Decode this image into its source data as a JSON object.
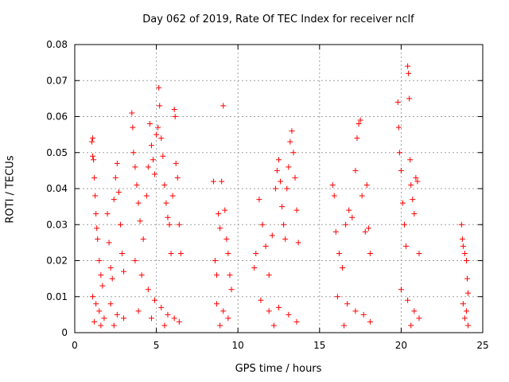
{
  "chart_data": {
    "type": "scatter",
    "title": "Day 062 of 2019, Rate Of TEC Index for receiver nclf",
    "xlabel": "GPS time / hours",
    "ylabel": "ROTI / TECUs",
    "xlim": [
      0,
      25
    ],
    "ylim": [
      0,
      0.08
    ],
    "xticks": [
      0,
      5,
      10,
      15,
      20,
      25
    ],
    "yticks": [
      0,
      0.01,
      0.02,
      0.03,
      0.04,
      0.05,
      0.06,
      0.07,
      0.08
    ],
    "xtick_labels": [
      "0",
      "5",
      "10",
      "15",
      "20",
      "25"
    ],
    "ytick_labels": [
      "0",
      "0.01",
      "0.02",
      "0.03",
      "0.04",
      "0.05",
      "0.06",
      "0.07",
      "0.08"
    ],
    "grid": true,
    "marker": "+",
    "marker_color": "#ff0000",
    "series": [
      {
        "name": "ROTI",
        "points": [
          [
            1.05,
            0.053
          ],
          [
            1.1,
            0.054
          ],
          [
            1.1,
            0.049
          ],
          [
            1.15,
            0.048
          ],
          [
            1.2,
            0.043
          ],
          [
            1.25,
            0.038
          ],
          [
            1.3,
            0.033
          ],
          [
            1.35,
            0.029
          ],
          [
            1.4,
            0.026
          ],
          [
            1.5,
            0.02
          ],
          [
            1.6,
            0.016
          ],
          [
            1.7,
            0.013
          ],
          [
            1.1,
            0.01
          ],
          [
            1.3,
            0.008
          ],
          [
            1.5,
            0.006
          ],
          [
            1.8,
            0.004
          ],
          [
            1.2,
            0.003
          ],
          [
            1.6,
            0.002
          ],
          [
            2.0,
            0.033
          ],
          [
            2.1,
            0.025
          ],
          [
            2.2,
            0.018
          ],
          [
            2.3,
            0.015
          ],
          [
            2.4,
            0.037
          ],
          [
            2.5,
            0.043
          ],
          [
            2.6,
            0.047
          ],
          [
            2.7,
            0.039
          ],
          [
            2.8,
            0.03
          ],
          [
            2.9,
            0.022
          ],
          [
            3.0,
            0.017
          ],
          [
            2.2,
            0.008
          ],
          [
            2.6,
            0.005
          ],
          [
            3.0,
            0.004
          ],
          [
            2.4,
            0.002
          ],
          [
            3.5,
            0.061
          ],
          [
            3.55,
            0.057
          ],
          [
            3.6,
            0.05
          ],
          [
            3.7,
            0.046
          ],
          [
            3.8,
            0.041
          ],
          [
            3.9,
            0.036
          ],
          [
            4.0,
            0.031
          ],
          [
            4.2,
            0.026
          ],
          [
            4.4,
            0.038
          ],
          [
            4.5,
            0.046
          ],
          [
            4.6,
            0.058
          ],
          [
            4.7,
            0.052
          ],
          [
            4.8,
            0.048
          ],
          [
            4.9,
            0.044
          ],
          [
            5.0,
            0.055
          ],
          [
            5.1,
            0.057
          ],
          [
            5.15,
            0.068
          ],
          [
            5.2,
            0.063
          ],
          [
            5.3,
            0.054
          ],
          [
            5.4,
            0.049
          ],
          [
            5.5,
            0.041
          ],
          [
            5.6,
            0.036
          ],
          [
            5.7,
            0.032
          ],
          [
            5.8,
            0.03
          ],
          [
            5.9,
            0.022
          ],
          [
            6.0,
            0.038
          ],
          [
            6.1,
            0.062
          ],
          [
            6.15,
            0.06
          ],
          [
            6.2,
            0.047
          ],
          [
            6.3,
            0.043
          ],
          [
            6.4,
            0.03
          ],
          [
            6.5,
            0.022
          ],
          [
            3.7,
            0.02
          ],
          [
            4.1,
            0.016
          ],
          [
            4.5,
            0.012
          ],
          [
            4.9,
            0.009
          ],
          [
            5.3,
            0.007
          ],
          [
            5.7,
            0.005
          ],
          [
            6.1,
            0.004
          ],
          [
            6.4,
            0.003
          ],
          [
            3.9,
            0.006
          ],
          [
            4.7,
            0.004
          ],
          [
            5.5,
            0.002
          ],
          [
            8.5,
            0.042
          ],
          [
            8.6,
            0.02
          ],
          [
            8.7,
            0.016
          ],
          [
            8.8,
            0.033
          ],
          [
            8.9,
            0.029
          ],
          [
            9.0,
            0.042
          ],
          [
            9.1,
            0.063
          ],
          [
            9.2,
            0.034
          ],
          [
            9.3,
            0.026
          ],
          [
            9.4,
            0.022
          ],
          [
            9.5,
            0.016
          ],
          [
            9.6,
            0.012
          ],
          [
            8.7,
            0.008
          ],
          [
            9.1,
            0.006
          ],
          [
            9.4,
            0.004
          ],
          [
            8.9,
            0.002
          ],
          [
            11.0,
            0.018
          ],
          [
            11.1,
            0.022
          ],
          [
            11.3,
            0.037
          ],
          [
            11.5,
            0.03
          ],
          [
            11.7,
            0.024
          ],
          [
            11.9,
            0.016
          ],
          [
            12.1,
            0.027
          ],
          [
            12.3,
            0.04
          ],
          [
            12.4,
            0.045
          ],
          [
            12.5,
            0.048
          ],
          [
            12.6,
            0.042
          ],
          [
            12.7,
            0.035
          ],
          [
            12.8,
            0.03
          ],
          [
            12.9,
            0.026
          ],
          [
            13.0,
            0.04
          ],
          [
            13.1,
            0.046
          ],
          [
            13.2,
            0.053
          ],
          [
            13.3,
            0.056
          ],
          [
            13.4,
            0.05
          ],
          [
            13.5,
            0.043
          ],
          [
            13.6,
            0.034
          ],
          [
            13.7,
            0.025
          ],
          [
            11.4,
            0.009
          ],
          [
            11.9,
            0.006
          ],
          [
            12.5,
            0.007
          ],
          [
            13.1,
            0.005
          ],
          [
            13.6,
            0.003
          ],
          [
            12.2,
            0.002
          ],
          [
            15.8,
            0.041
          ],
          [
            15.9,
            0.038
          ],
          [
            16.0,
            0.028
          ],
          [
            16.2,
            0.022
          ],
          [
            16.4,
            0.018
          ],
          [
            16.6,
            0.03
          ],
          [
            16.8,
            0.034
          ],
          [
            17.0,
            0.032
          ],
          [
            17.2,
            0.045
          ],
          [
            17.3,
            0.054
          ],
          [
            17.4,
            0.058
          ],
          [
            17.5,
            0.059
          ],
          [
            17.6,
            0.038
          ],
          [
            17.8,
            0.028
          ],
          [
            17.9,
            0.041
          ],
          [
            18.0,
            0.029
          ],
          [
            18.1,
            0.022
          ],
          [
            16.1,
            0.01
          ],
          [
            16.7,
            0.008
          ],
          [
            17.2,
            0.006
          ],
          [
            17.7,
            0.005
          ],
          [
            18.1,
            0.003
          ],
          [
            16.5,
            0.002
          ],
          [
            19.8,
            0.064
          ],
          [
            19.85,
            0.057
          ],
          [
            19.9,
            0.05
          ],
          [
            20.0,
            0.045
          ],
          [
            20.1,
            0.036
          ],
          [
            20.2,
            0.03
          ],
          [
            20.3,
            0.024
          ],
          [
            20.4,
            0.074
          ],
          [
            20.45,
            0.072
          ],
          [
            20.5,
            0.065
          ],
          [
            20.55,
            0.048
          ],
          [
            20.6,
            0.041
          ],
          [
            20.7,
            0.037
          ],
          [
            20.8,
            0.033
          ],
          [
            20.9,
            0.043
          ],
          [
            21.0,
            0.042
          ],
          [
            21.1,
            0.022
          ],
          [
            20.0,
            0.012
          ],
          [
            20.4,
            0.009
          ],
          [
            20.8,
            0.006
          ],
          [
            21.1,
            0.004
          ],
          [
            20.6,
            0.002
          ],
          [
            23.7,
            0.03
          ],
          [
            23.75,
            0.026
          ],
          [
            23.8,
            0.024
          ],
          [
            23.9,
            0.022
          ],
          [
            24.0,
            0.02
          ],
          [
            24.05,
            0.015
          ],
          [
            24.1,
            0.011
          ],
          [
            23.8,
            0.008
          ],
          [
            24.0,
            0.006
          ],
          [
            23.9,
            0.004
          ],
          [
            24.1,
            0.002
          ]
        ]
      }
    ]
  }
}
